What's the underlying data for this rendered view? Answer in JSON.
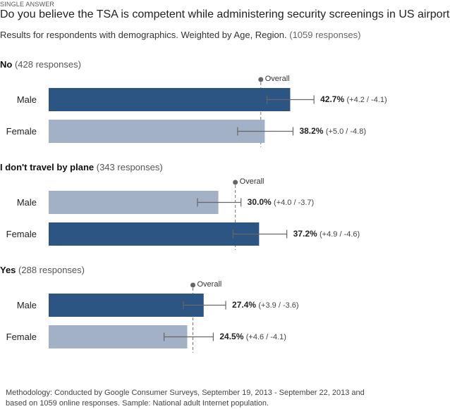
{
  "header": {
    "question_type": "SINGLE ANSWER",
    "title": "Do you believe the TSA is competent while administering security screenings in US airports?",
    "subtitle_main": "Results for respondents with demographics. Weighted by Age, Region.",
    "subtitle_count": "(1059 responses)"
  },
  "footer": {
    "line1": "Methodology: Conducted by Google Consumer Surveys, September 19, 2013 - September 22, 2013 and",
    "line2": "based on 1059 online responses. Sample: National adult Internet population."
  },
  "colors": {
    "dark_bar": "#2d5583",
    "light_bar": "#a2b1c6",
    "overall_line": "#777777"
  },
  "chart_data": {
    "type": "bar",
    "orientation": "horizontal",
    "xlim": [
      0,
      100
    ],
    "overall_label": "Overall",
    "groups": [
      {
        "name": "No",
        "count": "(428 responses)",
        "overall": 37.5,
        "bars": [
          {
            "label": "Male",
            "value": 42.7,
            "value_text": "42.7%",
            "ci_text": "(+4.2 / -4.1)",
            "ci_plus": 4.2,
            "ci_minus": 4.1,
            "highlight": true
          },
          {
            "label": "Female",
            "value": 38.2,
            "value_text": "38.2%",
            "ci_text": "(+5.0 / -4.8)",
            "ci_plus": 5.0,
            "ci_minus": 4.8,
            "highlight": false
          }
        ]
      },
      {
        "name": "I don't travel by plane",
        "count": "(343 responses)",
        "overall": 33.0,
        "bars": [
          {
            "label": "Male",
            "value": 30.0,
            "value_text": "30.0%",
            "ci_text": "(+4.0 / -3.7)",
            "ci_plus": 4.0,
            "ci_minus": 3.7,
            "highlight": false
          },
          {
            "label": "Female",
            "value": 37.2,
            "value_text": "37.2%",
            "ci_text": "(+4.9 / -4.6)",
            "ci_plus": 4.9,
            "ci_minus": 4.6,
            "highlight": true
          }
        ]
      },
      {
        "name": "Yes",
        "count": "(288 responses)",
        "overall": 25.5,
        "bars": [
          {
            "label": "Male",
            "value": 27.4,
            "value_text": "27.4%",
            "ci_text": "(+3.9 / -3.6)",
            "ci_plus": 3.9,
            "ci_minus": 3.6,
            "highlight": true
          },
          {
            "label": "Female",
            "value": 24.5,
            "value_text": "24.5%",
            "ci_text": "(+4.6 / -4.1)",
            "ci_plus": 4.6,
            "ci_minus": 4.1,
            "highlight": false
          }
        ]
      }
    ]
  }
}
